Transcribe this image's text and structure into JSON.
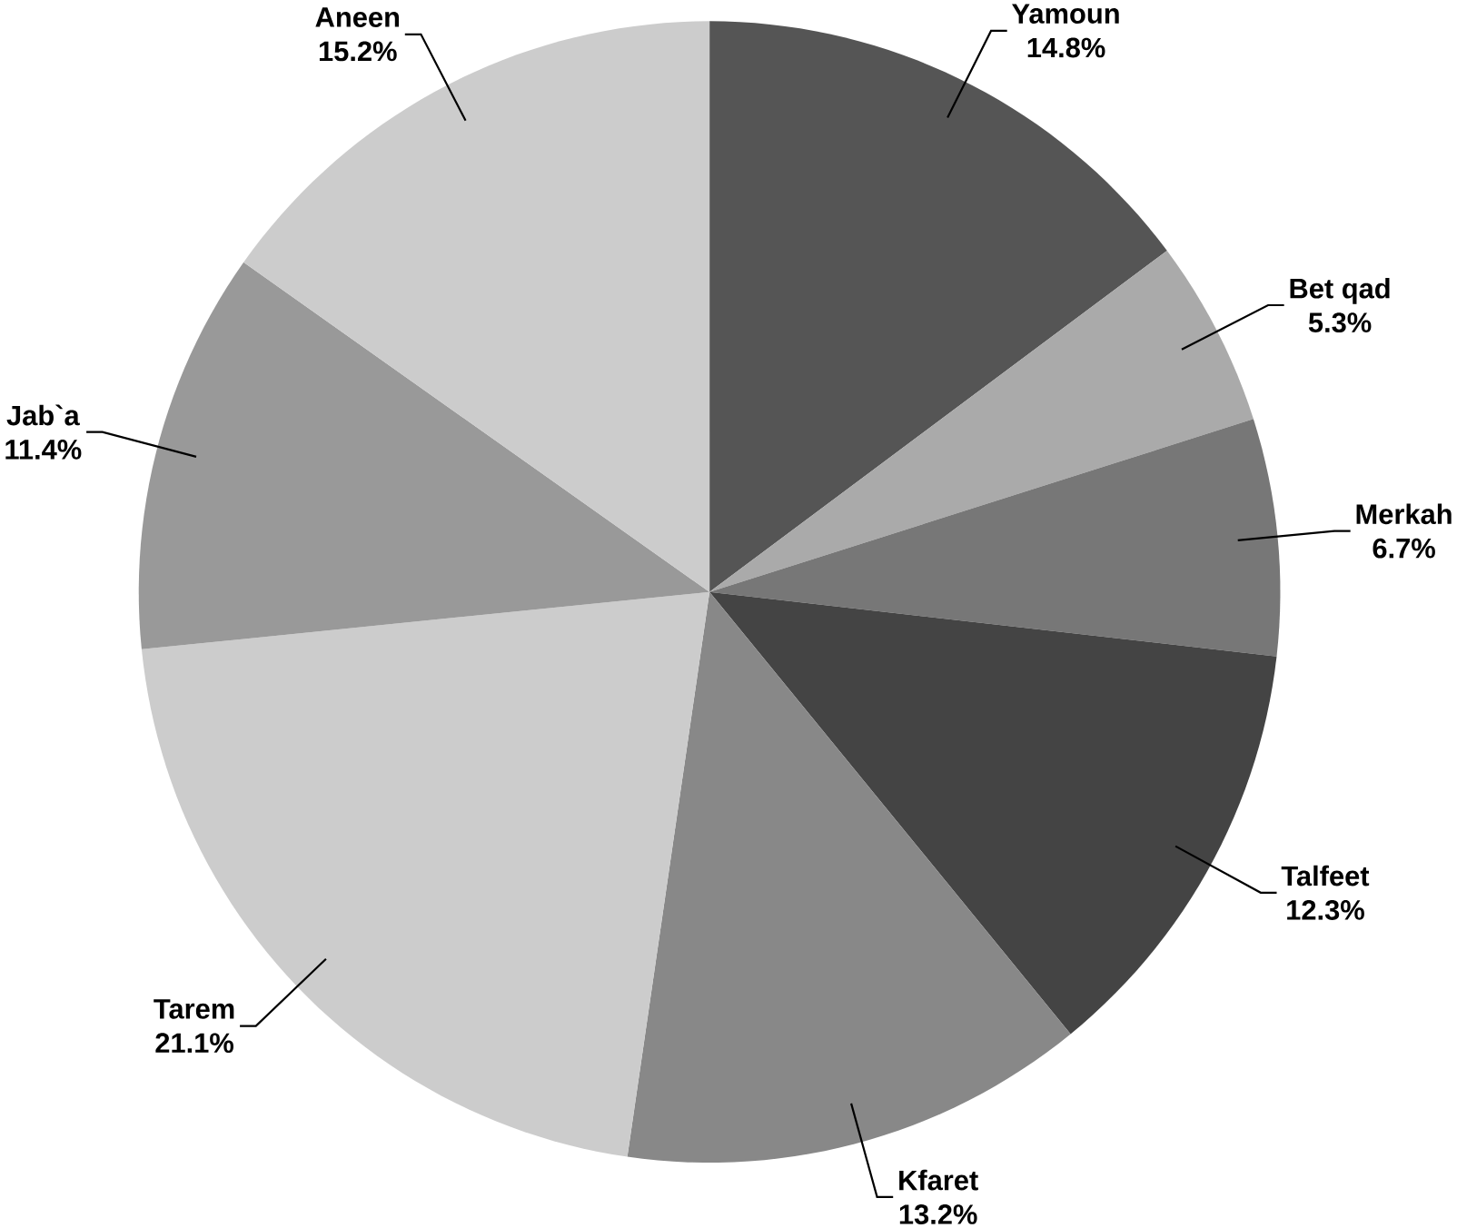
{
  "chart_data": {
    "type": "pie",
    "categories": [
      "Yamoun",
      "Bet qad",
      "Merkah",
      "Talfeet",
      "Kfaret",
      "Tarem",
      "Jab`a",
      "Aneen"
    ],
    "values": [
      14.8,
      5.3,
      6.7,
      12.3,
      13.2,
      21.1,
      11.4,
      15.2
    ],
    "value_labels": [
      "14.8%",
      "5.3%",
      "6.7%",
      "12.3%",
      "13.2%",
      "21.1%",
      "11.4%",
      "15.2%"
    ],
    "colors": [
      "#555555",
      "#aaaaaa",
      "#777777",
      "#444444",
      "#888888",
      "#cccccc",
      "#999999",
      "#cccccc"
    ]
  }
}
